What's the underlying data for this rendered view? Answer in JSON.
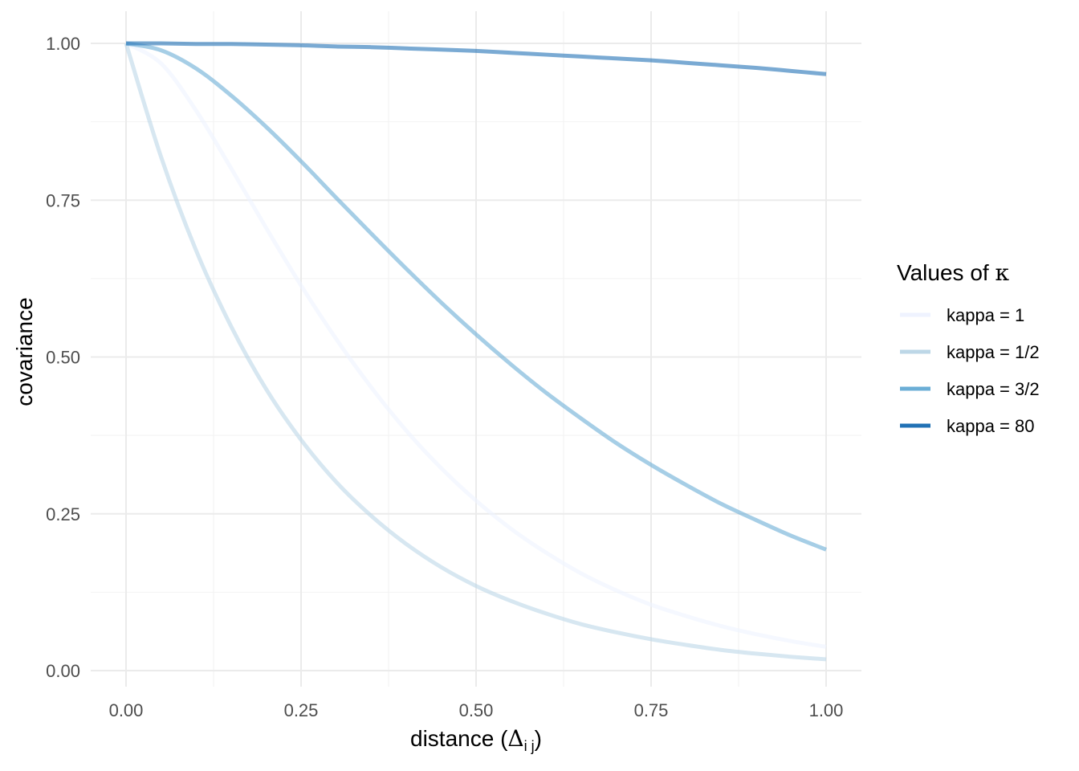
{
  "chart_data": {
    "type": "line",
    "title": "",
    "xlabel_prefix": "distance (",
    "xlabel_symbol": "Δ",
    "xlabel_subscript": "i j",
    "xlabel_suffix": ")",
    "ylabel": "covariance",
    "xlim": [
      0,
      1
    ],
    "ylim": [
      0,
      1
    ],
    "x_ticks": [
      "0.00",
      "0.25",
      "0.50",
      "0.75",
      "1.00"
    ],
    "y_ticks": [
      "0.00",
      "0.25",
      "0.50",
      "0.75",
      "1.00"
    ],
    "grid": true,
    "legend": {
      "title_prefix": "Values of ",
      "title_symbol": "κ",
      "placement": "right"
    },
    "x": [
      0,
      0.05,
      0.1,
      0.15,
      0.2,
      0.25,
      0.3,
      0.35,
      0.4,
      0.45,
      0.5,
      0.55,
      0.6,
      0.65,
      0.7,
      0.75,
      0.8,
      0.85,
      0.9,
      0.95,
      1.0
    ],
    "series": [
      {
        "name": "kappa = 1",
        "color": "#eff3ff",
        "values": [
          1.0,
          0.968,
          0.893,
          0.801,
          0.706,
          0.614,
          0.529,
          0.452,
          0.383,
          0.323,
          0.271,
          0.226,
          0.188,
          0.155,
          0.128,
          0.105,
          0.087,
          0.071,
          0.058,
          0.047,
          0.038
        ]
      },
      {
        "name": "kappa = 1/2",
        "color": "#bdd7e7",
        "values": [
          1.0,
          0.819,
          0.67,
          0.549,
          0.449,
          0.368,
          0.301,
          0.247,
          0.202,
          0.165,
          0.135,
          0.111,
          0.091,
          0.074,
          0.061,
          0.05,
          0.041,
          0.033,
          0.027,
          0.022,
          0.018
        ]
      },
      {
        "name": "kappa = 3/2",
        "color": "#6baed6",
        "values": [
          1.0,
          0.989,
          0.96,
          0.917,
          0.867,
          0.812,
          0.754,
          0.697,
          0.641,
          0.587,
          0.536,
          0.488,
          0.443,
          0.402,
          0.363,
          0.328,
          0.296,
          0.266,
          0.24,
          0.215,
          0.193
        ]
      },
      {
        "name": "kappa = 80",
        "color": "#2171b5",
        "values": [
          1.0,
          1.0,
          0.999,
          0.999,
          0.998,
          0.997,
          0.995,
          0.994,
          0.992,
          0.99,
          0.988,
          0.985,
          0.982,
          0.979,
          0.976,
          0.973,
          0.969,
          0.965,
          0.961,
          0.956,
          0.951
        ]
      }
    ]
  }
}
